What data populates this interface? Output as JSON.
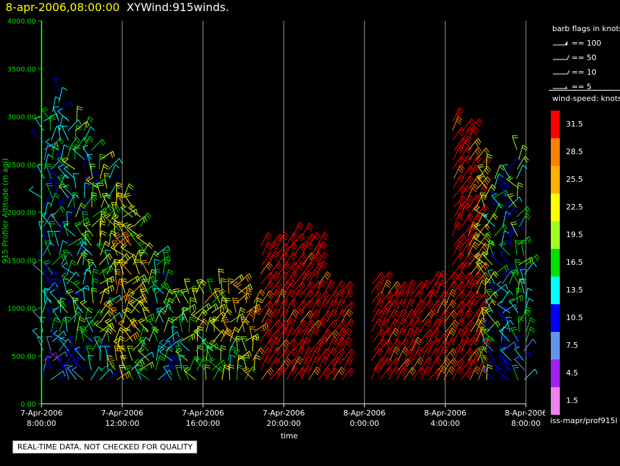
{
  "title": {
    "timestamp": "8-apr-2006,08:00:00",
    "product": "XYWind:915winds."
  },
  "chart_data": {
    "type": "scatter",
    "subtype": "wind-barb time-height",
    "ylabel": "915 Profiler Altitude (m agl)",
    "xlabel": "time",
    "ylim": [
      0,
      4000
    ],
    "y_ticks": [
      "0.00",
      "500.00",
      "1000.00",
      "1500.00",
      "2000.00",
      "2500.00",
      "3000.00",
      "3500.00",
      "4000.00"
    ],
    "x_ticks": [
      {
        "date": "7-Apr-2006",
        "time": "8:00:00"
      },
      {
        "date": "7-Apr-2006",
        "time": "12:00:00"
      },
      {
        "date": "7-Apr-2006",
        "time": "16:00:00"
      },
      {
        "date": "7-Apr-2006",
        "time": "20:00:00"
      },
      {
        "date": "8-Apr-2006",
        "time": "0:00:00"
      },
      {
        "date": "8-Apr-2006",
        "time": "4:00:00"
      },
      {
        "date": "8-Apr-2006",
        "time": "8:00:00"
      }
    ],
    "x_range_hours": [
      0,
      24
    ],
    "grid": "vertical lines at each time tick",
    "colorbar": {
      "title": "wind-speed: knots",
      "levels": [
        {
          "label": "31.5",
          "color": "#ff0000"
        },
        {
          "label": "28.5",
          "color": "#ff8000"
        },
        {
          "label": "25.5",
          "color": "#ffb000"
        },
        {
          "label": "22.5",
          "color": "#ffff00"
        },
        {
          "label": "19.5",
          "color": "#a0ff20"
        },
        {
          "label": "16.5",
          "color": "#00e000"
        },
        {
          "label": "13.5",
          "color": "#00ffff"
        },
        {
          "label": "10.5",
          "color": "#0000ff"
        },
        {
          "label": "7.5",
          "color": "#6495ed"
        },
        {
          "label": "4.5",
          "color": "#a020f0"
        },
        {
          "label": "1.5",
          "color": "#ee82ee"
        }
      ]
    },
    "barb_legend": {
      "title": "barb flags in knots",
      "entries": [
        "== 100",
        "== 50",
        "== 10",
        "== 5"
      ]
    },
    "barb_columns": [
      {
        "hour": 0.1,
        "top": 3000,
        "speed": 11
      },
      {
        "hour": 0.5,
        "top": 3100,
        "speed": 14
      },
      {
        "hour": 0.9,
        "top": 3300,
        "speed": 12
      },
      {
        "hour": 1.3,
        "top": 3000,
        "speed": 15
      },
      {
        "hour": 1.7,
        "top": 3000,
        "speed": 18
      },
      {
        "hour": 2.1,
        "top": 2900,
        "speed": 14
      },
      {
        "hour": 2.5,
        "top": 2700,
        "speed": 17
      },
      {
        "hour": 2.9,
        "top": 2600,
        "speed": 20
      },
      {
        "hour": 3.3,
        "top": 2500,
        "speed": 16
      },
      {
        "hour": 3.7,
        "top": 2200,
        "speed": 25
      },
      {
        "hour": 4.1,
        "top": 2200,
        "speed": 24
      },
      {
        "hour": 4.5,
        "top": 2100,
        "speed": 22
      },
      {
        "hour": 4.9,
        "top": 2000,
        "speed": 19
      },
      {
        "hour": 5.3,
        "top": 1700,
        "speed": 21
      },
      {
        "hour": 5.7,
        "top": 1600,
        "speed": 16
      },
      {
        "hour": 6.1,
        "top": 1500,
        "speed": 17
      },
      {
        "hour": 6.5,
        "top": 1300,
        "speed": 15
      },
      {
        "hour": 6.9,
        "top": 1200,
        "speed": 18
      },
      {
        "hour": 7.3,
        "top": 1200,
        "speed": 20
      },
      {
        "hour": 7.7,
        "top": 1200,
        "speed": 21
      },
      {
        "hour": 8.1,
        "top": 1200,
        "speed": 22
      },
      {
        "hour": 8.5,
        "top": 1200,
        "speed": 19
      },
      {
        "hour": 8.9,
        "top": 1300,
        "speed": 23
      },
      {
        "hour": 9.3,
        "top": 1300,
        "speed": 22
      },
      {
        "hour": 9.7,
        "top": 1300,
        "speed": 23
      },
      {
        "hour": 10.1,
        "top": 1200,
        "speed": 24
      },
      {
        "hour": 10.5,
        "top": 1100,
        "speed": 26
      },
      {
        "hour": 10.9,
        "top": 1700,
        "speed": 32
      },
      {
        "hour": 11.3,
        "top": 1700,
        "speed": 33
      },
      {
        "hour": 11.7,
        "top": 1700,
        "speed": 33
      },
      {
        "hour": 12.1,
        "top": 1700,
        "speed": 33
      },
      {
        "hour": 12.5,
        "top": 1800,
        "speed": 33
      },
      {
        "hour": 12.9,
        "top": 1800,
        "speed": 33
      },
      {
        "hour": 13.3,
        "top": 1700,
        "speed": 33
      },
      {
        "hour": 13.7,
        "top": 1700,
        "speed": 33
      },
      {
        "hour": 14.1,
        "top": 1200,
        "speed": 33
      },
      {
        "hour": 14.5,
        "top": 1200,
        "speed": 33
      },
      {
        "hour": 14.9,
        "top": 1200,
        "speed": 33
      },
      {
        "hour": 16.4,
        "top": 1300,
        "speed": 33
      },
      {
        "hour": 16.8,
        "top": 1300,
        "speed": 33
      },
      {
        "hour": 17.2,
        "top": 1200,
        "speed": 33
      },
      {
        "hour": 17.6,
        "top": 1200,
        "speed": 33
      },
      {
        "hour": 18.0,
        "top": 1200,
        "speed": 33
      },
      {
        "hour": 18.4,
        "top": 1200,
        "speed": 33
      },
      {
        "hour": 18.8,
        "top": 1200,
        "speed": 33
      },
      {
        "hour": 19.2,
        "top": 1300,
        "speed": 33
      },
      {
        "hour": 19.6,
        "top": 1300,
        "speed": 33
      },
      {
        "hour": 20.0,
        "top": 1300,
        "speed": 30
      },
      {
        "hour": 20.4,
        "top": 3000,
        "speed": 33
      },
      {
        "hour": 20.8,
        "top": 2900,
        "speed": 33
      },
      {
        "hour": 21.2,
        "top": 2900,
        "speed": 30
      },
      {
        "hour": 21.6,
        "top": 2600,
        "speed": 28
      },
      {
        "hour": 22.0,
        "top": 2500,
        "speed": 22
      },
      {
        "hour": 22.4,
        "top": 2400,
        "speed": 15
      },
      {
        "hour": 22.8,
        "top": 2200,
        "speed": 12
      },
      {
        "hour": 23.2,
        "top": 2500,
        "speed": 13
      },
      {
        "hour": 23.6,
        "top": 2700,
        "speed": 17
      },
      {
        "hour": 23.95,
        "top": 1600,
        "speed": 14
      }
    ]
  },
  "notes": {
    "source": "iss-mapr/prof915l",
    "quality": "REAL-TIME DATA, NOT CHECKED FOR QUALITY"
  }
}
